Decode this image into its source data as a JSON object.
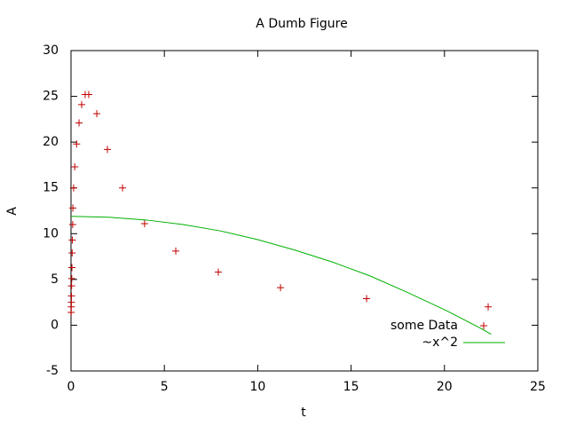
{
  "chart_data": {
    "type": "scatter",
    "title": "A Dumb Figure",
    "xlabel": "t",
    "ylabel": "A",
    "xlim": [
      0,
      25
    ],
    "xticks": [
      0,
      5,
      10,
      15,
      20,
      25
    ],
    "ylim": [
      -5,
      30
    ],
    "yticks": [
      -5,
      0,
      5,
      10,
      15,
      20,
      25,
      30
    ],
    "grid": false,
    "legend": "bottom right",
    "series": [
      {
        "name": "some Data",
        "color": "#c00000",
        "style": "points",
        "x": [
          0.01,
          0.015,
          0.02,
          0.025,
          0.03,
          0.04,
          0.05,
          0.06,
          0.07,
          0.09,
          0.1,
          0.14,
          0.2,
          0.3,
          0.43,
          0.57,
          0.76,
          0.95,
          1.38,
          1.95,
          2.76,
          3.94,
          5.61,
          7.89,
          11.22,
          15.83,
          22.34
        ],
        "values": [
          1.4,
          2.0,
          2.5,
          3.2,
          4.3,
          5.1,
          6.3,
          7.9,
          9.3,
          11.0,
          12.8,
          15.0,
          17.3,
          19.8,
          22.1,
          24.1,
          25.2,
          25.2,
          23.1,
          19.2,
          15.0,
          11.1,
          8.1,
          5.8,
          4.1,
          2.9,
          2.0
        ]
      },
      {
        "name": "~x^2",
        "color": "#00b000",
        "style": "lines",
        "x": [
          0,
          2,
          4,
          6,
          8,
          10,
          12,
          14,
          16,
          18,
          20,
          22,
          22.5
        ],
        "values": [
          11.9,
          11.8,
          11.5,
          11.0,
          10.3,
          9.35,
          8.2,
          6.9,
          5.4,
          3.6,
          1.7,
          -0.4,
          -1.0
        ]
      }
    ]
  }
}
